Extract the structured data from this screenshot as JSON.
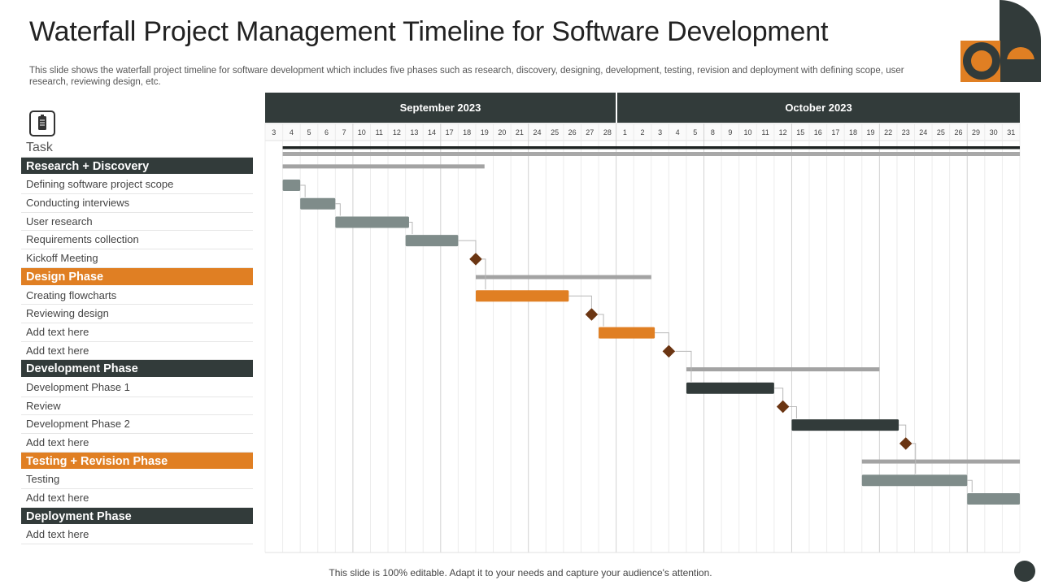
{
  "title": "Waterfall Project Management Timeline for Software Development",
  "subtitle": "This slide shows the waterfall project timeline for software development which includes five phases such as research, discovery, designing, development, testing, revision and deployment with defining scope, user research, reviewing design, etc.",
  "footer": "This slide is 100% editable. Adapt it to your needs and capture your audience's attention.",
  "colors": {
    "dark": "#323b3a",
    "orange": "#e07f23",
    "gray": "#7f8c8a",
    "summary": "#a3a3a3",
    "milestone": "#6b3512"
  },
  "task_header": "Task",
  "chart_data": {
    "type": "gantt",
    "months": [
      "September 2023",
      "October 2023"
    ],
    "days": [
      "3",
      "4",
      "5",
      "6",
      "7",
      "10",
      "11",
      "12",
      "13",
      "14",
      "17",
      "18",
      "19",
      "20",
      "21",
      "24",
      "25",
      "26",
      "27",
      "28",
      "1",
      "2",
      "3",
      "4",
      "5",
      "8",
      "9",
      "10",
      "11",
      "12",
      "15",
      "16",
      "17",
      "18",
      "19",
      "22",
      "23",
      "24",
      "25",
      "26",
      "29",
      "30",
      "31"
    ],
    "rows": [
      {
        "label": "Research + Discovery",
        "kind": "phase",
        "color": "dark",
        "summary": [
          0,
          11.5
        ]
      },
      {
        "label": "Defining  software  project  scope",
        "kind": "task",
        "bar": [
          0,
          1
        ],
        "color": "gray"
      },
      {
        "label": "Conducting  interviews",
        "kind": "task",
        "bar": [
          1,
          3
        ],
        "color": "gray"
      },
      {
        "label": "User  research",
        "kind": "task",
        "bar": [
          3,
          7.2
        ],
        "color": "gray"
      },
      {
        "label": "Requirements  collection",
        "kind": "task",
        "bar": [
          7,
          10
        ],
        "color": "gray"
      },
      {
        "label": "Kickoff  Meeting",
        "kind": "milestone",
        "at": 11
      },
      {
        "label": "Design Phase",
        "kind": "phase",
        "color": "orange",
        "summary": [
          11,
          21
        ]
      },
      {
        "label": "Creating  flowcharts",
        "kind": "task",
        "bar": [
          11,
          16.3
        ],
        "color": "orange"
      },
      {
        "label": "Reviewing  design",
        "kind": "milestone",
        "at": 17.6
      },
      {
        "label": "Add text here",
        "kind": "task",
        "bar": [
          18,
          21.2
        ],
        "color": "orange"
      },
      {
        "label": "Add text here",
        "kind": "milestone",
        "at": 22
      },
      {
        "label": "Development Phase",
        "kind": "phase",
        "color": "dark",
        "summary": [
          23,
          34
        ]
      },
      {
        "label": "Development   Phase  1",
        "kind": "task",
        "bar": [
          23,
          28
        ],
        "color": "dark"
      },
      {
        "label": "Review",
        "kind": "milestone",
        "at": 28.5
      },
      {
        "label": "Development   Phase  2",
        "kind": "task",
        "bar": [
          29,
          35.1
        ],
        "color": "dark"
      },
      {
        "label": "Add text here",
        "kind": "milestone",
        "at": 35.5
      },
      {
        "label": "Testing + Revision Phase",
        "kind": "phase",
        "color": "orange",
        "summary": [
          33,
          42
        ]
      },
      {
        "label": "Testing",
        "kind": "task",
        "bar": [
          33,
          39
        ],
        "color": "gray"
      },
      {
        "label": "Add text here",
        "kind": "task",
        "bar": [
          39,
          42
        ],
        "color": "gray"
      },
      {
        "label": "Deployment Phase",
        "kind": "phase",
        "color": "dark"
      },
      {
        "label": "Add text here",
        "kind": "none"
      }
    ]
  }
}
